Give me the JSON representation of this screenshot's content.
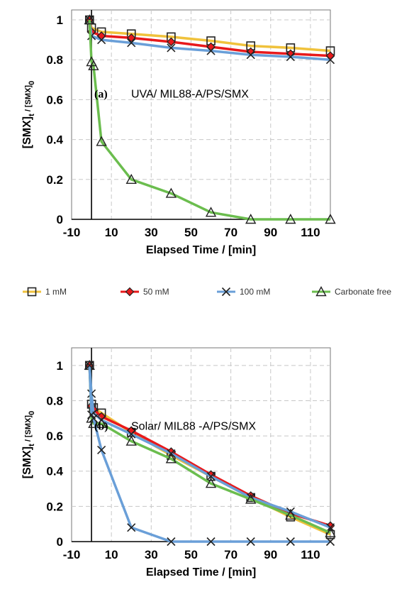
{
  "legend": {
    "position": "between-panels",
    "series_names": [
      "1 mM",
      "50 mM",
      "100 mM",
      "Carbonate free"
    ]
  },
  "colors": {
    "1 mM": "#f0c23c",
    "50 mM": "#e8191b",
    "100 mM": "#6a9fd8",
    "Carbonate free": "#6bbd4e"
  },
  "chart_data": [
    {
      "type": "line",
      "panel_label": "(a)",
      "annotation": "UVA/ MIL88-A/PS/SMX",
      "xlabel": "Elapsed Time / [min]",
      "ylabel": "[SMX]t / [SMX]0",
      "xlim": [
        -10,
        120
      ],
      "ylim": [
        0,
        1.05
      ],
      "xticks": [
        -10,
        10,
        30,
        50,
        70,
        90,
        110
      ],
      "yticks": [
        0,
        0.2,
        0.4,
        0.6,
        0.8,
        1
      ],
      "grid": true,
      "series": [
        {
          "name": "1 mM",
          "marker": "square",
          "x": [
            -1,
            0,
            5,
            20,
            40,
            60,
            80,
            100,
            120
          ],
          "y": [
            1.0,
            0.96,
            0.94,
            0.93,
            0.915,
            0.895,
            0.87,
            0.86,
            0.845
          ]
        },
        {
          "name": "50 mM",
          "marker": "diamond",
          "x": [
            -1,
            0,
            5,
            20,
            40,
            60,
            80,
            100,
            120
          ],
          "y": [
            1.0,
            0.94,
            0.92,
            0.91,
            0.89,
            0.865,
            0.84,
            0.83,
            0.82
          ]
        },
        {
          "name": "100 mM",
          "marker": "x",
          "x": [
            -1,
            0,
            5,
            20,
            40,
            60,
            80,
            100,
            120
          ],
          "y": [
            1.0,
            0.92,
            0.9,
            0.885,
            0.86,
            0.845,
            0.825,
            0.815,
            0.8
          ]
        },
        {
          "name": "Carbonate free",
          "marker": "triangle",
          "x": [
            -1,
            0,
            1,
            5,
            20,
            40,
            60,
            80,
            100,
            120
          ],
          "y": [
            1.0,
            0.79,
            0.77,
            0.39,
            0.2,
            0.13,
            0.035,
            0.0,
            0.0,
            0.0
          ]
        }
      ]
    },
    {
      "type": "line",
      "panel_label": "(b)",
      "annotation": "Solar/ MIL88 -A/PS/SMX",
      "xlabel": "Elapsed Time / [min]",
      "ylabel": "[SMX]t / [SMX]0",
      "xlim": [
        -10,
        120
      ],
      "ylim": [
        0,
        1.1
      ],
      "xticks": [
        -10,
        10,
        30,
        50,
        70,
        90,
        110
      ],
      "yticks": [
        0,
        0.2,
        0.4,
        0.6,
        0.8,
        1
      ],
      "grid": true,
      "series": [
        {
          "name": "1 mM",
          "marker": "square",
          "x": [
            -1,
            0,
            1,
            5,
            20,
            40,
            60,
            80,
            100,
            120
          ],
          "y": [
            1.0,
            0.78,
            0.76,
            0.73,
            0.62,
            0.49,
            0.37,
            0.25,
            0.14,
            0.04
          ]
        },
        {
          "name": "50 mM",
          "marker": "diamond",
          "x": [
            -1,
            0,
            1,
            5,
            20,
            40,
            60,
            80,
            100,
            120
          ],
          "y": [
            1.0,
            0.77,
            0.75,
            0.71,
            0.63,
            0.51,
            0.38,
            0.26,
            0.16,
            0.09
          ]
        },
        {
          "name": "100 mM",
          "marker": "x",
          "x": [
            -1,
            0,
            1,
            5,
            20,
            40,
            60,
            80,
            100,
            120
          ],
          "y": [
            1.0,
            0.84,
            0.73,
            0.69,
            0.61,
            0.5,
            0.37,
            0.25,
            0.17,
            0.08
          ]
        },
        {
          "name": "Carbonate free",
          "marker": "triangle",
          "x": [
            -1,
            0,
            1,
            5,
            20,
            40,
            60,
            80,
            100,
            120
          ],
          "y": [
            1.0,
            0.7,
            0.67,
            0.67,
            0.57,
            0.47,
            0.33,
            0.24,
            0.15,
            0.05
          ]
        },
        {
          "name": "100 mM",
          "marker": "x",
          "x": [
            -1,
            0,
            1,
            5,
            20,
            40,
            60,
            80,
            100,
            120
          ],
          "y": [
            1.0,
            0.72,
            0.7,
            0.52,
            0.08,
            0.0,
            0.0,
            0.0,
            0.0,
            0.0
          ]
        }
      ]
    }
  ]
}
